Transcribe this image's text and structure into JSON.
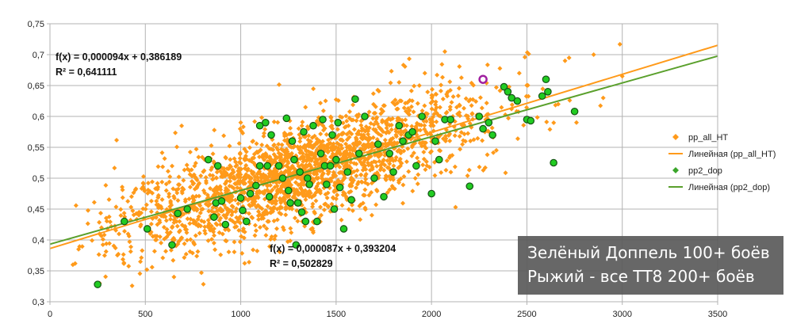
{
  "chart_data": {
    "type": "scatter",
    "title": "",
    "xlabel": "",
    "ylabel": "",
    "xlim": [
      0,
      3500
    ],
    "ylim": [
      0.3,
      0.75
    ],
    "x_ticks": [
      "0",
      "500",
      "1000",
      "1500",
      "2000",
      "2500",
      "3000",
      "3500"
    ],
    "y_ticks": [
      "0,3",
      "0,35",
      "0,4",
      "0,45",
      "0,5",
      "0,55",
      "0,6",
      "0,65",
      "0,7",
      "0,75"
    ],
    "grid": true,
    "legend_position": "right",
    "series": [
      {
        "name": "pp_all_HT",
        "marker": "diamond",
        "color": "#ff9a1a",
        "count_approx": 2200,
        "cloud": {
          "x_mean": 1300,
          "x_sd": 480,
          "x_min": 100,
          "x_max": 3000,
          "resid_sd": 0.04,
          "samples": [
            [
              120,
              0.36
            ],
            [
              150,
              0.385
            ],
            [
              260,
              0.33
            ],
            [
              260,
              0.41
            ],
            [
              270,
              0.42
            ],
            [
              2070,
              0.705
            ],
            [
              2460,
              0.67
            ],
            [
              2700,
              0.69
            ],
            [
              2850,
              0.7
            ],
            [
              3000,
              0.665
            ],
            [
              2900,
              0.63
            ],
            [
              1000,
              0.59
            ],
            [
              650,
              0.34
            ],
            [
              2760,
              0.59
            ],
            [
              2340,
              0.545
            ]
          ]
        }
      },
      {
        "name": "Линейная (pp_all_HT)",
        "type": "trendline",
        "color": "#ff9a1a",
        "slope": 9.4e-05,
        "intercept": 0.386189,
        "x_range": [
          0,
          3500
        ]
      },
      {
        "name": "pp2_dop",
        "marker": "circle",
        "color": "#22cc22",
        "points": [
          [
            250,
            0.328
          ],
          [
            390,
            0.43
          ],
          [
            510,
            0.418
          ],
          [
            640,
            0.392
          ],
          [
            670,
            0.443
          ],
          [
            720,
            0.45
          ],
          [
            830,
            0.53
          ],
          [
            860,
            0.437
          ],
          [
            870,
            0.46
          ],
          [
            880,
            0.52
          ],
          [
            900,
            0.463
          ],
          [
            920,
            0.425
          ],
          [
            1000,
            0.468
          ],
          [
            1010,
            0.448
          ],
          [
            1030,
            0.43
          ],
          [
            1050,
            0.475
          ],
          [
            1080,
            0.488
          ],
          [
            1100,
            0.585
          ],
          [
            1100,
            0.52
          ],
          [
            1130,
            0.59
          ],
          [
            1140,
            0.52
          ],
          [
            1150,
            0.47
          ],
          [
            1160,
            0.57
          ],
          [
            1200,
            0.52
          ],
          [
            1220,
            0.5
          ],
          [
            1240,
            0.597
          ],
          [
            1250,
            0.48
          ],
          [
            1260,
            0.46
          ],
          [
            1270,
            0.56
          ],
          [
            1280,
            0.53
          ],
          [
            1290,
            0.392
          ],
          [
            1300,
            0.46
          ],
          [
            1310,
            0.51
          ],
          [
            1320,
            0.445
          ],
          [
            1330,
            0.575
          ],
          [
            1340,
            0.43
          ],
          [
            1350,
            0.5
          ],
          [
            1360,
            0.49
          ],
          [
            1380,
            0.585
          ],
          [
            1400,
            0.43
          ],
          [
            1420,
            0.54
          ],
          [
            1430,
            0.595
          ],
          [
            1440,
            0.52
          ],
          [
            1450,
            0.49
          ],
          [
            1470,
            0.52
          ],
          [
            1480,
            0.57
          ],
          [
            1490,
            0.45
          ],
          [
            1500,
            0.53
          ],
          [
            1510,
            0.59
          ],
          [
            1520,
            0.485
          ],
          [
            1540,
            0.418
          ],
          [
            1560,
            0.51
          ],
          [
            1580,
            0.465
          ],
          [
            1600,
            0.628
          ],
          [
            1620,
            0.54
          ],
          [
            1650,
            0.6
          ],
          [
            1700,
            0.5
          ],
          [
            1720,
            0.555
          ],
          [
            1750,
            0.47
          ],
          [
            1780,
            0.54
          ],
          [
            1800,
            0.51
          ],
          [
            1830,
            0.585
          ],
          [
            1850,
            0.56
          ],
          [
            1880,
            0.57
          ],
          [
            1900,
            0.575
          ],
          [
            1920,
            0.52
          ],
          [
            1950,
            0.6
          ],
          [
            2000,
            0.475
          ],
          [
            2020,
            0.56
          ],
          [
            2040,
            0.53
          ],
          [
            2070,
            0.595
          ],
          [
            2100,
            0.595
          ],
          [
            2200,
            0.487
          ],
          [
            2250,
            0.6
          ],
          [
            2270,
            0.58
          ],
          [
            2300,
            0.59
          ],
          [
            2320,
            0.57
          ],
          [
            2380,
            0.648
          ],
          [
            2400,
            0.64
          ],
          [
            2420,
            0.63
          ],
          [
            2450,
            0.625
          ],
          [
            2500,
            0.595
          ],
          [
            2520,
            0.593
          ],
          [
            2580,
            0.633
          ],
          [
            2600,
            0.66
          ],
          [
            2610,
            0.64
          ],
          [
            2640,
            0.525
          ],
          [
            2750,
            0.608
          ]
        ]
      },
      {
        "name": "Линейная (pp2_dop)",
        "type": "trendline",
        "color": "#5aa02c",
        "slope": 8.7e-05,
        "intercept": 0.393204,
        "x_range": [
          0,
          3500
        ]
      }
    ],
    "highlight_point": {
      "x": 2270,
      "y": 0.66,
      "color": "#a020a0"
    },
    "annotations": [
      {
        "line1": "f(x) = 0,000094x + 0,386189",
        "line2": "R² = 0,641111"
      },
      {
        "line1": "f(x) = 0,000087x + 0,393204",
        "line2": "R² = 0,502829"
      }
    ]
  },
  "caption": {
    "line1": "Зелёный Доппель 100+ боёв",
    "line2": "Рыжий - все ТТ8 200+ боёв"
  }
}
